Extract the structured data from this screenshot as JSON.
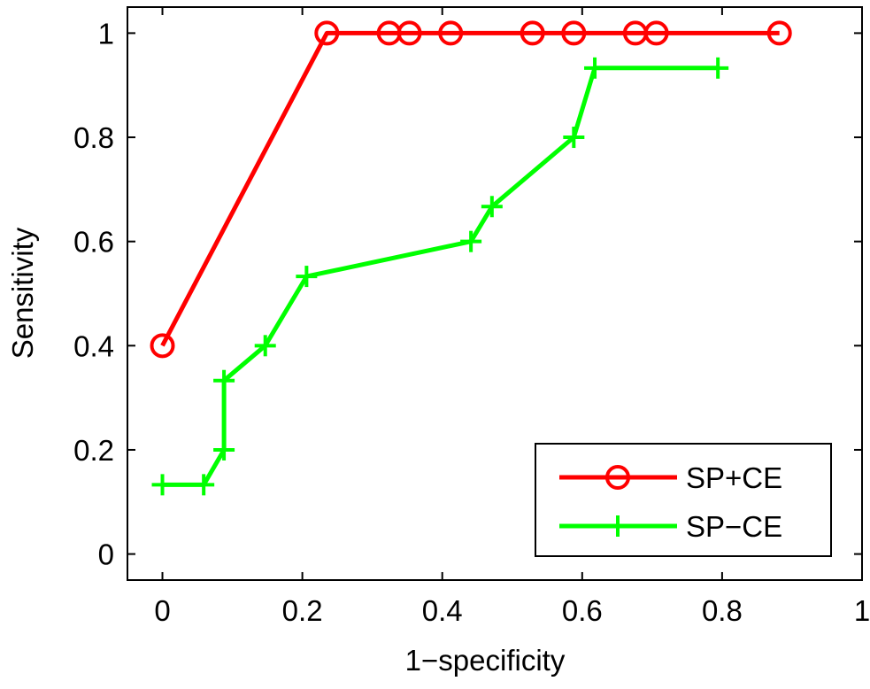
{
  "chart_data": {
    "type": "line",
    "title": "",
    "xlabel": "1−specificity",
    "ylabel": "Sensitivity",
    "xlim": [
      -0.05,
      1
    ],
    "ylim": [
      -0.05,
      1.05
    ],
    "xticks": [
      0,
      0.2,
      0.4,
      0.6,
      0.8,
      1
    ],
    "xtick_labels": [
      "0",
      "0.2",
      "0.4",
      "0.6",
      "0.8",
      "1"
    ],
    "yticks": [
      0,
      0.2,
      0.4,
      0.6,
      0.8,
      1
    ],
    "ytick_labels": [
      "0",
      "0.2",
      "0.4",
      "0.6",
      "0.8",
      "1"
    ],
    "grid": false,
    "legend_position": "bottom-right",
    "series": [
      {
        "name": "SP+CE",
        "color": "#ff0000",
        "marker": "circle",
        "x": [
          0,
          0.235,
          0.324,
          0.353,
          0.412,
          0.529,
          0.588,
          0.676,
          0.706,
          0.882
        ],
        "y": [
          0.4,
          1,
          1,
          1,
          1,
          1,
          1,
          1,
          1,
          1
        ]
      },
      {
        "name": "SP−CE",
        "color": "#00ff00",
        "marker": "plus",
        "x": [
          0,
          0.059,
          0.088,
          0.088,
          0.147,
          0.206,
          0.441,
          0.471,
          0.588,
          0.618,
          0.794
        ],
        "y": [
          0.133,
          0.133,
          0.2,
          0.333,
          0.4,
          0.533,
          0.6,
          0.667,
          0.8,
          0.933,
          0.933
        ]
      }
    ]
  }
}
